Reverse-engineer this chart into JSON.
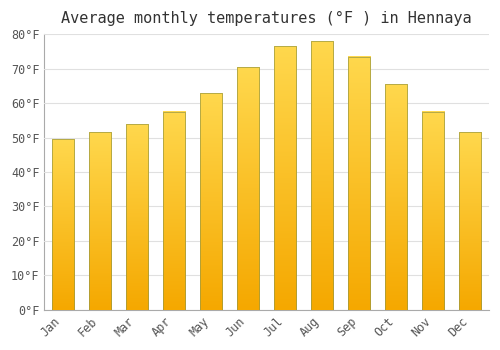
{
  "title": "Average monthly temperatures (°F ) in Hennaya",
  "months": [
    "Jan",
    "Feb",
    "Mar",
    "Apr",
    "May",
    "Jun",
    "Jul",
    "Aug",
    "Sep",
    "Oct",
    "Nov",
    "Dec"
  ],
  "values": [
    49.5,
    51.5,
    54,
    57.5,
    63,
    70.5,
    76.5,
    78,
    73.5,
    65.5,
    57.5,
    51.5
  ],
  "bar_color_bottom": "#F5A800",
  "bar_color_top": "#FFD84D",
  "bar_edge_color": "#888833",
  "ylim": [
    0,
    80
  ],
  "yticks": [
    0,
    10,
    20,
    30,
    40,
    50,
    60,
    70,
    80
  ],
  "ytick_labels": [
    "0°F",
    "10°F",
    "20°F",
    "30°F",
    "40°F",
    "50°F",
    "60°F",
    "70°F",
    "80°F"
  ],
  "background_color": "#FFFFFF",
  "grid_color": "#E0E0E0",
  "title_fontsize": 11,
  "tick_fontsize": 8.5,
  "title_color": "#333333",
  "tick_color": "#555555"
}
